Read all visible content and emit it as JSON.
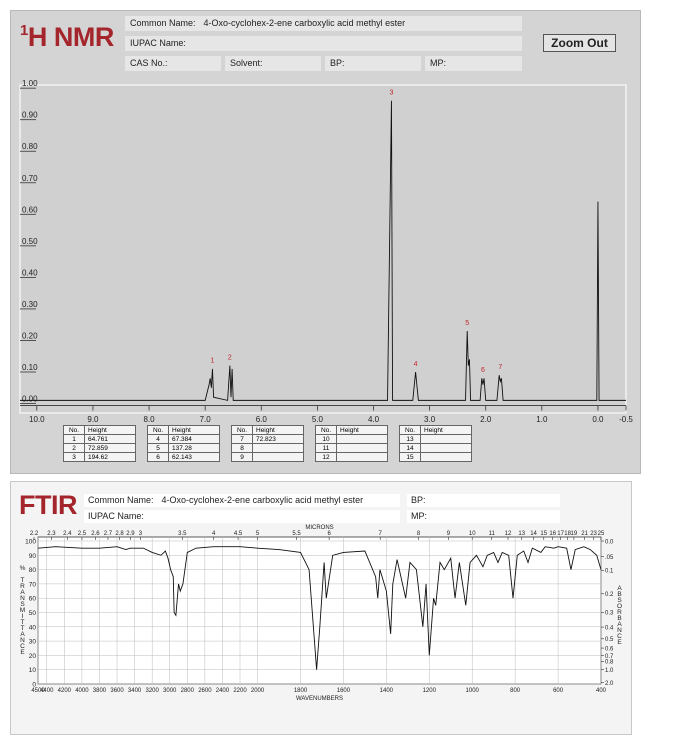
{
  "chart_data": [
    {
      "type": "line",
      "title": "H NMR",
      "title_superscript": "1",
      "x": [
        10.3,
        7.0,
        6.93,
        6.91,
        6.89,
        6.87,
        6.85,
        6.6,
        6.56,
        6.54,
        6.52,
        6.5,
        3.75,
        3.68,
        3.66,
        3.3,
        3.25,
        3.2,
        2.36,
        2.33,
        2.31,
        2.29,
        2.27,
        2.1,
        2.07,
        2.05,
        2.03,
        2.0,
        1.8,
        1.76,
        1.74,
        1.72,
        1.69,
        0.02,
        0.0,
        -0.02,
        -0.5
      ],
      "values": [
        0.01,
        0.01,
        0.06,
        0.08,
        0.05,
        0.11,
        0.02,
        0.01,
        0.12,
        0.02,
        0.11,
        0.01,
        0.01,
        0.96,
        0.01,
        0.01,
        0.1,
        0.01,
        0.01,
        0.23,
        0.12,
        0.14,
        0.01,
        0.01,
        0.08,
        0.06,
        0.08,
        0.01,
        0.01,
        0.09,
        0.07,
        0.08,
        0.01,
        0.01,
        0.64,
        0.01,
        0.01
      ],
      "color": "#111111",
      "xlim": [
        10.3,
        -0.5
      ],
      "ylim": [
        -0.03,
        1.01
      ],
      "xticks": [
        {
          "value": 10,
          "label": "10.0"
        },
        {
          "value": 9,
          "label": "9.0"
        },
        {
          "value": 8,
          "label": "8.0"
        },
        {
          "value": 7,
          "label": "7.0"
        },
        {
          "value": 6,
          "label": "6.0"
        },
        {
          "value": 5,
          "label": "5.0"
        },
        {
          "value": 4,
          "label": "4.0"
        },
        {
          "value": 3,
          "label": "3.0"
        },
        {
          "value": 2,
          "label": "2.0"
        },
        {
          "value": 1,
          "label": "1.0"
        },
        {
          "value": 0,
          "label": "0.0"
        },
        -0.5
      ],
      "yticks": [
        {
          "value": 0,
          "label": "0.00"
        },
        {
          "value": 0.1,
          "label": "0.10"
        },
        {
          "value": 0.2,
          "label": "0.20"
        },
        {
          "value": 0.3,
          "label": "0.30"
        },
        {
          "value": 0.4,
          "label": "0.40"
        },
        {
          "value": 0.5,
          "label": "0.50"
        },
        {
          "value": 0.6,
          "label": "0.60"
        },
        {
          "value": 0.7,
          "label": "0.70"
        },
        {
          "value": 0.8,
          "label": "0.80"
        },
        {
          "value": 0.9,
          "label": "0.90"
        },
        {
          "value": 1.0,
          "label": "1.00"
        }
      ],
      "annotations": [
        {
          "text": "1",
          "x": 6.87,
          "y": 0.12
        },
        {
          "text": "2",
          "x": 6.56,
          "y": 0.13
        },
        {
          "text": "3",
          "x": 3.68,
          "y": 0.97
        },
        {
          "text": "4",
          "x": 3.25,
          "y": 0.11
        },
        {
          "text": "5",
          "x": 2.33,
          "y": 0.24
        },
        {
          "text": "6",
          "x": 2.05,
          "y": 0.09
        },
        {
          "text": "7",
          "x": 1.74,
          "y": 0.1
        }
      ],
      "annotation_color": "#c0262c"
    },
    {
      "type": "line",
      "title": "FTIR",
      "x": [
        4500,
        4300,
        4000,
        3800,
        3600,
        3500,
        3450,
        3300,
        3200,
        3100,
        3050,
        3020,
        2990,
        2960,
        2950,
        2930,
        2900,
        2880,
        2850,
        2800,
        2700,
        2500,
        2200,
        2000,
        1900,
        1800,
        1760,
        1740,
        1725,
        1710,
        1690,
        1680,
        1670,
        1650,
        1600,
        1500,
        1450,
        1440,
        1430,
        1400,
        1380,
        1370,
        1350,
        1310,
        1290,
        1260,
        1230,
        1215,
        1200,
        1180,
        1170,
        1150,
        1130,
        1100,
        1080,
        1060,
        1030,
        1010,
        980,
        950,
        930,
        900,
        880,
        860,
        830,
        810,
        790,
        760,
        740,
        720,
        680,
        660,
        620,
        600,
        560,
        540,
        520,
        480,
        450,
        420,
        400
      ],
      "values": [
        95,
        96,
        95,
        95,
        96,
        94,
        95,
        95,
        92,
        90,
        93,
        88,
        80,
        75,
        50,
        48,
        70,
        65,
        70,
        92,
        95,
        96,
        96,
        95,
        94,
        92,
        80,
        40,
        10,
        40,
        85,
        60,
        70,
        90,
        92,
        93,
        75,
        60,
        80,
        65,
        35,
        70,
        87,
        60,
        85,
        80,
        40,
        70,
        20,
        60,
        55,
        85,
        80,
        88,
        60,
        85,
        55,
        85,
        90,
        82,
        90,
        92,
        85,
        92,
        90,
        60,
        90,
        93,
        85,
        95,
        92,
        96,
        95,
        96,
        95,
        80,
        94,
        96,
        94,
        90,
        80
      ],
      "color": "#111111",
      "xlim": [
        4500,
        400
      ],
      "x_scale_change": 2000,
      "ylim": [
        0,
        100
      ],
      "xticks": [
        4500,
        4400,
        4200,
        4000,
        3800,
        3600,
        3400,
        3200,
        3000,
        2800,
        2600,
        2400,
        2200,
        2000,
        1800,
        1600,
        1400,
        1200,
        1000,
        800,
        600,
        400
      ],
      "yticks": [
        0,
        10,
        20,
        30,
        40,
        50,
        60,
        70,
        80,
        90,
        100
      ],
      "x2ticks": [
        2.2,
        2.3,
        2.4,
        2.5,
        2.6,
        2.7,
        2.8,
        2.9,
        3,
        3.5,
        4,
        4.5,
        5,
        5.5,
        6,
        7,
        8,
        9,
        10,
        11,
        12,
        13,
        14,
        15,
        16,
        17,
        18,
        19,
        21,
        23,
        25
      ],
      "y2ticks": [
        {
          "value": 0,
          "label": "0.0"
        },
        {
          "value": 0.05,
          "label": ".05"
        },
        {
          "value": 0.1,
          "label": "0.1"
        },
        {
          "value": 0.2,
          "label": "0.2"
        },
        {
          "value": 0.3,
          "label": "0.3"
        },
        {
          "value": 0.4,
          "label": "0.4"
        },
        {
          "value": 0.5,
          "label": "0.5"
        },
        {
          "value": 0.6,
          "label": "0.6"
        },
        {
          "value": 0.7,
          "label": "0.7"
        },
        {
          "value": 0.8,
          "label": "0.8"
        },
        {
          "value": 1.0,
          "label": "1.0"
        },
        {
          "value": 2.0,
          "label": "2.0"
        }
      ],
      "x_label": "WAVENUMBERS",
      "x2_label": "MICRONS",
      "y_label": "% TRANSMITTANCE",
      "y2_label": "ABSORBANCE",
      "grid": true
    }
  ],
  "nmr_header": {
    "common_name_label": "Common Name:",
    "common_name": "4-Oxo-cyclohex-2-ene carboxylic acid methyl ester",
    "iupac_label": "IUPAC Name:",
    "cas_label": "CAS No.:",
    "solvent_label": "Solvent:",
    "bp_label": "BP:",
    "mp_label": "MP:",
    "button": "Zoom Out"
  },
  "peak_table": {
    "headers": [
      "No.",
      "Height"
    ],
    "rows": [
      [
        1,
        64.761
      ],
      [
        2,
        72.859
      ],
      [
        3,
        194.62
      ],
      [
        4,
        67.384
      ],
      [
        5,
        137.28
      ],
      [
        6,
        62.143
      ],
      [
        7,
        72.823
      ],
      [
        8,
        null
      ],
      [
        9,
        null
      ],
      [
        10,
        null
      ],
      [
        11,
        null
      ],
      [
        12,
        null
      ],
      [
        13,
        null
      ],
      [
        14,
        null
      ],
      [
        15,
        null
      ]
    ]
  },
  "ftir_header": {
    "common_name_label": "Common Name:",
    "common_name": "4-Oxo-cyclohex-2-ene carboxylic acid methyl ester",
    "iupac_label": "IUPAC Name:",
    "bp_label": "BP:",
    "mp_label": "MP:"
  }
}
